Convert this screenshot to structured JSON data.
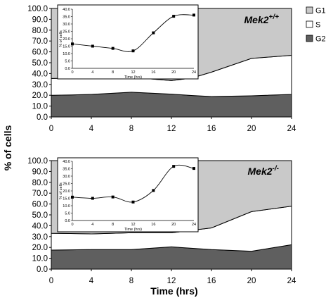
{
  "legend": [
    {
      "label": "G1",
      "color": "#c9c9c9"
    },
    {
      "label": "S",
      "color": "#ffffff"
    },
    {
      "label": "G2",
      "color": "#5f5f5f"
    }
  ],
  "y_axis_label": "% of cells",
  "x_axis_label": "Time (hrs)",
  "chart_data": [
    {
      "type": "area",
      "title": "Mek2",
      "title_superscript": "+/+",
      "x": [
        0,
        2,
        4,
        8,
        12,
        14,
        16,
        20,
        24
      ],
      "series": [
        {
          "name": "G2",
          "values": [
            20,
            20.3,
            20.8,
            22.8,
            21,
            19.8,
            18.8,
            19.5,
            20.8
          ]
        },
        {
          "name": "S",
          "values": [
            15.5,
            15.5,
            14.7,
            13.7,
            12.5,
            16,
            22.5,
            34.5,
            36
          ]
        },
        {
          "name": "G1",
          "values": [
            64.5,
            64.2,
            64.5,
            63.5,
            66.5,
            64.2,
            58.7,
            46,
            43.2
          ]
        }
      ],
      "ylim": [
        0,
        100
      ],
      "yticks": [
        "0.0",
        "10.0",
        "20.0",
        "30.0",
        "40.0",
        "50.0",
        "60.0",
        "70.0",
        "80.0",
        "90.0",
        "100.0"
      ],
      "xticks": [
        "0",
        "4",
        "8",
        "12",
        "16",
        "20",
        "24"
      ],
      "inset": {
        "type": "line",
        "x": [
          0,
          4,
          8,
          12,
          16,
          20,
          24
        ],
        "y": [
          16.5,
          15,
          13.5,
          11.8,
          24,
          35.2,
          36
        ],
        "ylim": [
          0,
          40
        ],
        "yticks": [
          "0.0",
          "5.0",
          "10.0",
          "15.0",
          "20.0",
          "25.0",
          "30.0",
          "35.0",
          "40.0"
        ],
        "xticks": [
          "0",
          "4",
          "8",
          "12",
          "16",
          "20",
          "24"
        ],
        "xlabel": "Time (hrs)",
        "ylabel": "% of cells"
      }
    },
    {
      "type": "area",
      "title": "Mek2",
      "title_superscript": "-/-",
      "x": [
        0,
        4,
        8,
        12,
        16,
        20,
        24
      ],
      "series": [
        {
          "name": "G2",
          "values": [
            17.5,
            18,
            18,
            20.5,
            18,
            16.5,
            22.5
          ]
        },
        {
          "name": "S",
          "values": [
            15.5,
            14.5,
            15.5,
            13,
            20,
            36.5,
            35.5
          ]
        },
        {
          "name": "G1",
          "values": [
            67,
            67.5,
            66.5,
            66.5,
            62,
            47,
            42
          ]
        }
      ],
      "ylim": [
        0,
        100
      ],
      "yticks": [
        "0.0",
        "10.0",
        "20.0",
        "30.0",
        "40.0",
        "50.0",
        "60.0",
        "70.0",
        "80.0",
        "90.0",
        "100.0"
      ],
      "xticks": [
        "0",
        "4",
        "8",
        "12",
        "16",
        "20",
        "24"
      ],
      "inset": {
        "type": "line",
        "x": [
          0,
          4,
          8,
          12,
          16,
          20,
          24
        ],
        "y": [
          15.8,
          15,
          15.9,
          12.5,
          20.3,
          36.6,
          35.2
        ],
        "ylim": [
          0,
          40
        ],
        "yticks": [
          "0.0",
          "5.0",
          "10.0",
          "15.0",
          "20.0",
          "25.0",
          "30.0",
          "35.0",
          "40.0"
        ],
        "xticks": [
          "0",
          "4",
          "8",
          "12",
          "16",
          "20",
          "24"
        ],
        "xlabel": "Time (hrs)",
        "ylabel": "% of cells"
      }
    }
  ]
}
